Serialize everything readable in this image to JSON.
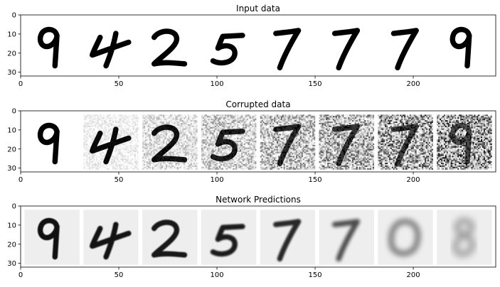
{
  "figure": {
    "panel_count": 3
  },
  "chart_data": [
    {
      "type": "heatmap",
      "title": "Input data",
      "xlim": [
        0,
        242
      ],
      "ylim": [
        32,
        0
      ],
      "xticks": [
        "0",
        "50",
        "100",
        "150",
        "200"
      ],
      "yticks": [
        "0",
        "10",
        "20",
        "30"
      ],
      "images": [
        {
          "digit": "9",
          "noise_level": 0.0,
          "blur": 0.0
        },
        {
          "digit": "4",
          "noise_level": 0.0,
          "blur": 0.0
        },
        {
          "digit": "2",
          "noise_level": 0.0,
          "blur": 0.0
        },
        {
          "digit": "5",
          "noise_level": 0.0,
          "blur": 0.0
        },
        {
          "digit": "7",
          "noise_level": 0.0,
          "blur": 0.0
        },
        {
          "digit": "7",
          "noise_level": 0.0,
          "blur": 0.0
        },
        {
          "digit": "7",
          "noise_level": 0.0,
          "blur": 0.0
        },
        {
          "digit": "9",
          "noise_level": 0.0,
          "blur": 0.0
        }
      ]
    },
    {
      "type": "heatmap",
      "title": "Corrupted data",
      "xlim": [
        0,
        242
      ],
      "ylim": [
        32,
        0
      ],
      "xticks": [
        "0",
        "50",
        "100",
        "150",
        "200"
      ],
      "yticks": [
        "0",
        "10",
        "20",
        "30"
      ],
      "images": [
        {
          "digit": "9",
          "noise_level": 0.0,
          "blur": 0.0
        },
        {
          "digit": "4",
          "noise_level": 0.14,
          "blur": 0.0
        },
        {
          "digit": "2",
          "noise_level": 0.28,
          "blur": 0.0
        },
        {
          "digit": "5",
          "noise_level": 0.42,
          "blur": 0.0
        },
        {
          "digit": "7",
          "noise_level": 0.57,
          "blur": 0.0
        },
        {
          "digit": "7",
          "noise_level": 0.71,
          "blur": 0.0
        },
        {
          "digit": "7",
          "noise_level": 0.86,
          "blur": 0.0
        },
        {
          "digit": "9",
          "noise_level": 1.0,
          "blur": 0.0
        }
      ]
    },
    {
      "type": "heatmap",
      "title": "Network Predictions",
      "xlim": [
        0,
        242
      ],
      "ylim": [
        32,
        0
      ],
      "xticks": [
        "0",
        "50",
        "100",
        "150",
        "200"
      ],
      "yticks": [
        "0",
        "10",
        "20",
        "30"
      ],
      "images": [
        {
          "digit": "9",
          "noise_level": 0.0,
          "blur": 0.2
        },
        {
          "digit": "4",
          "noise_level": 0.0,
          "blur": 0.25
        },
        {
          "digit": "2",
          "noise_level": 0.0,
          "blur": 0.3
        },
        {
          "digit": "5",
          "noise_level": 0.0,
          "blur": 0.35
        },
        {
          "digit": "7",
          "noise_level": 0.0,
          "blur": 0.5
        },
        {
          "digit": "7",
          "noise_level": 0.0,
          "blur": 0.9
        },
        {
          "digit": "0",
          "noise_level": 0.0,
          "blur": 1.4
        },
        {
          "digit": "8",
          "noise_level": 0.0,
          "blur": 1.8
        }
      ]
    }
  ]
}
